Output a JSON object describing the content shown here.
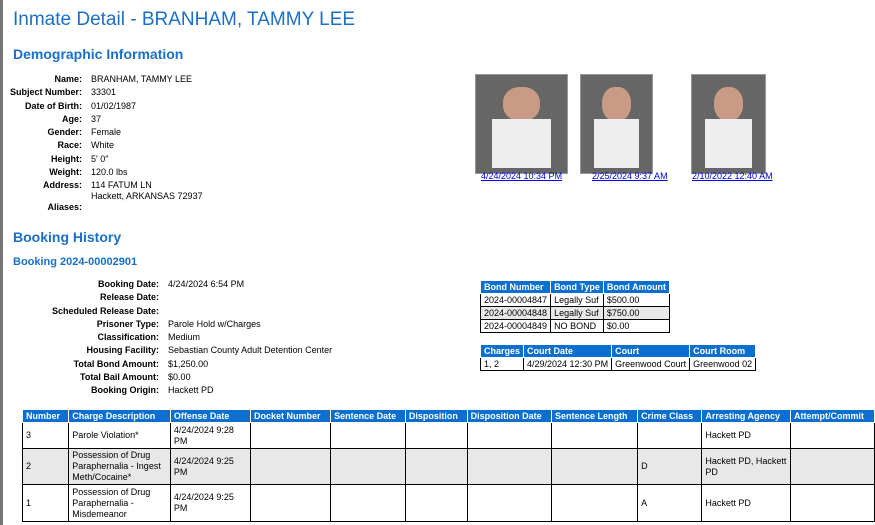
{
  "title": "Inmate Detail - BRANHAM, TAMMY LEE",
  "demographic": {
    "heading": "Demographic Information",
    "fields": [
      {
        "label": "Name:",
        "value": "BRANHAM, TAMMY LEE"
      },
      {
        "label": "Subject Number:",
        "value": "33301"
      },
      {
        "label": "Date of Birth:",
        "value": "01/02/1987"
      },
      {
        "label": "Age:",
        "value": "37"
      },
      {
        "label": "Gender:",
        "value": "Female"
      },
      {
        "label": "Race:",
        "value": "White"
      },
      {
        "label": "Height:",
        "value": "5' 0\""
      },
      {
        "label": "Weight:",
        "value": "120.0 lbs"
      },
      {
        "label": "Address:",
        "value": "114 FATUM LN",
        "value2": "Hackett, ARKANSAS 72937"
      },
      {
        "label": "Aliases:",
        "value": ""
      }
    ]
  },
  "photos": [
    {
      "link": "4/24/2024 10:34 PM"
    },
    {
      "link": "2/25/2024 9:37 AM"
    },
    {
      "link": "2/10/2022 12:40 AM"
    }
  ],
  "booking_history": {
    "heading": "Booking History",
    "booking_title": "Booking 2024-00002901",
    "fields": [
      {
        "label": "Booking Date:",
        "value": "4/24/2024 6:54 PM"
      },
      {
        "label": "Release Date:",
        "value": ""
      },
      {
        "label": "Scheduled Release Date:",
        "value": ""
      },
      {
        "label": "Prisoner Type:",
        "value": "Parole Hold w/Charges"
      },
      {
        "label": "Classification:",
        "value": "Medium"
      },
      {
        "label": "Housing Facility:",
        "value": "Sebastian County Adult Detention Center"
      },
      {
        "label": "Total Bond Amount:",
        "value": "$1,250.00"
      },
      {
        "label": "Total Bail Amount:",
        "value": "$0.00"
      },
      {
        "label": "Booking Origin:",
        "value": "Hackett PD"
      }
    ]
  },
  "bonds": {
    "headers": [
      "Bond Number",
      "Bond Type",
      "Bond Amount"
    ],
    "rows": [
      [
        "2024-00004847",
        "Legally Suf",
        "$500.00"
      ],
      [
        "2024-00004848",
        "Legally Suf",
        "$750.00"
      ],
      [
        "2024-00004849",
        "NO BOND",
        "$0.00"
      ]
    ]
  },
  "court": {
    "headers": [
      "Charges",
      "Court Date",
      "Court",
      "Court Room"
    ],
    "rows": [
      [
        "1, 2",
        "4/29/2024 12:30 PM",
        "Greenwood Court",
        "Greenwood 02"
      ]
    ]
  },
  "charges": {
    "headers": [
      "Number",
      "Charge Description",
      "Offense Date",
      "Docket Number",
      "Sentence Date",
      "Disposition",
      "Disposition Date",
      "Sentence Length",
      "Crime Class",
      "Arresting Agency",
      "Attempt/Commit"
    ],
    "rows": [
      [
        "3",
        "Parole Violation*",
        "4/24/2024 9:28 PM",
        "",
        "",
        "",
        "",
        "",
        "",
        "Hackett PD",
        ""
      ],
      [
        "2",
        "Possession of Drug Paraphernalia - Ingest Meth/Cocaine*",
        "4/24/2024 9:25 PM",
        "",
        "",
        "",
        "",
        "",
        "D",
        "Hackett PD, Hackett PD",
        ""
      ],
      [
        "1",
        "Possession of Drug Paraphernalia - Misdemeanor",
        "4/24/2024 9:25 PM",
        "",
        "",
        "",
        "",
        "",
        "A",
        "Hackett PD",
        ""
      ]
    ]
  }
}
